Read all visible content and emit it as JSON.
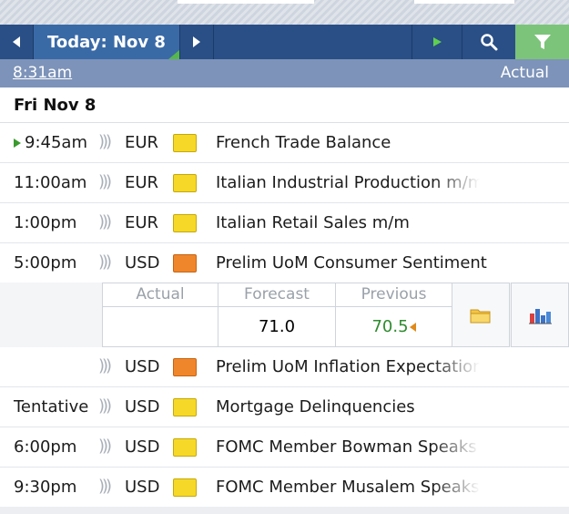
{
  "toolbar": {
    "today_label": "Today: Nov 8",
    "prev_icon": "arrow-left-icon",
    "next_icon": "arrow-right-icon",
    "play_icon": "play-icon",
    "search_icon": "search-icon",
    "filter_icon": "filter-icon"
  },
  "timebar": {
    "time": "8:31am",
    "actual_label": "Actual"
  },
  "day": {
    "label": "Fri Nov 8"
  },
  "events": [
    {
      "time": "9:45am",
      "currency": "EUR",
      "impact": "low",
      "name": "French Trade Balance",
      "current": true
    },
    {
      "time": "11:00am",
      "currency": "EUR",
      "impact": "low",
      "name": "Italian Industrial Production m/m"
    },
    {
      "time": "1:00pm",
      "currency": "EUR",
      "impact": "low",
      "name": "Italian Retail Sales m/m"
    },
    {
      "time": "5:00pm",
      "currency": "USD",
      "impact": "medium",
      "name": "Prelim UoM Consumer Sentiment"
    },
    {
      "time": "",
      "currency": "USD",
      "impact": "medium",
      "name": "Prelim UoM Inflation Expectations"
    },
    {
      "time": "Tentative",
      "currency": "USD",
      "impact": "low",
      "name": "Mortgage Delinquencies"
    },
    {
      "time": "6:00pm",
      "currency": "USD",
      "impact": "low",
      "name": "FOMC Member Bowman Speaks"
    },
    {
      "time": "9:30pm",
      "currency": "USD",
      "impact": "low",
      "name": "FOMC Member Musalem Speaks"
    }
  ],
  "detail": {
    "actual_label": "Actual",
    "forecast_label": "Forecast",
    "previous_label": "Previous",
    "actual_value": "",
    "forecast_value": "71.0",
    "previous_value": "70.5",
    "previous_color": "#2e8b2e",
    "folder_icon": "folder-icon",
    "chart_icon": "bar-chart-icon"
  },
  "colors": {
    "toolbar": "#2a4f86",
    "today_button": "#3a6aa6",
    "filter_button": "#7cc47a",
    "time_bar": "#7d93b9",
    "low_impact": "#f6d928",
    "medium_impact": "#f0862b"
  }
}
